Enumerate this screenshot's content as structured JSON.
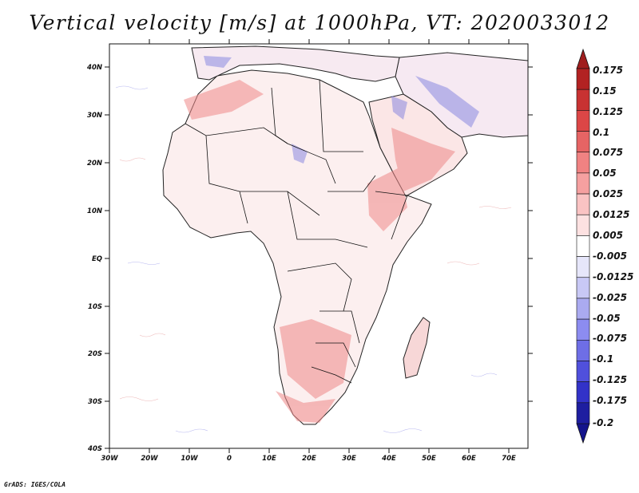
{
  "title": "Vertical velocity [m/s] at 1000hPa, VT: 2020033012",
  "credit": "GrADS: IGES/COLA",
  "map": {
    "lon_range": [
      -30,
      75
    ],
    "lat_range": [
      -40,
      45
    ],
    "lon_ticks": [
      "30W",
      "20W",
      "10W",
      "0",
      "10E",
      "20E",
      "30E",
      "40E",
      "50E",
      "60E",
      "70E"
    ],
    "lat_ticks": [
      "40N",
      "30N",
      "20N",
      "10N",
      "EQ",
      "10S",
      "20S",
      "30S",
      "40S"
    ]
  },
  "colorbar": {
    "labels": [
      "0.175",
      "0.15",
      "0.125",
      "0.1",
      "0.075",
      "0.05",
      "0.025",
      "0.0125",
      "0.005",
      "-0.005",
      "-0.0125",
      "-0.025",
      "-0.05",
      "-0.075",
      "-0.1",
      "-0.125",
      "-0.175",
      "-0.2"
    ],
    "colors": [
      "#b22222",
      "#c83232",
      "#dc4646",
      "#e66464",
      "#f08282",
      "#f5a0a0",
      "#fac3c3",
      "#fde1e1",
      "#ffffff",
      "#e6e6fa",
      "#c8c8f5",
      "#aaaaf0",
      "#8c8cf0",
      "#6e6ee6",
      "#5050dc",
      "#3232c8",
      "#1e1ea0"
    ]
  }
}
